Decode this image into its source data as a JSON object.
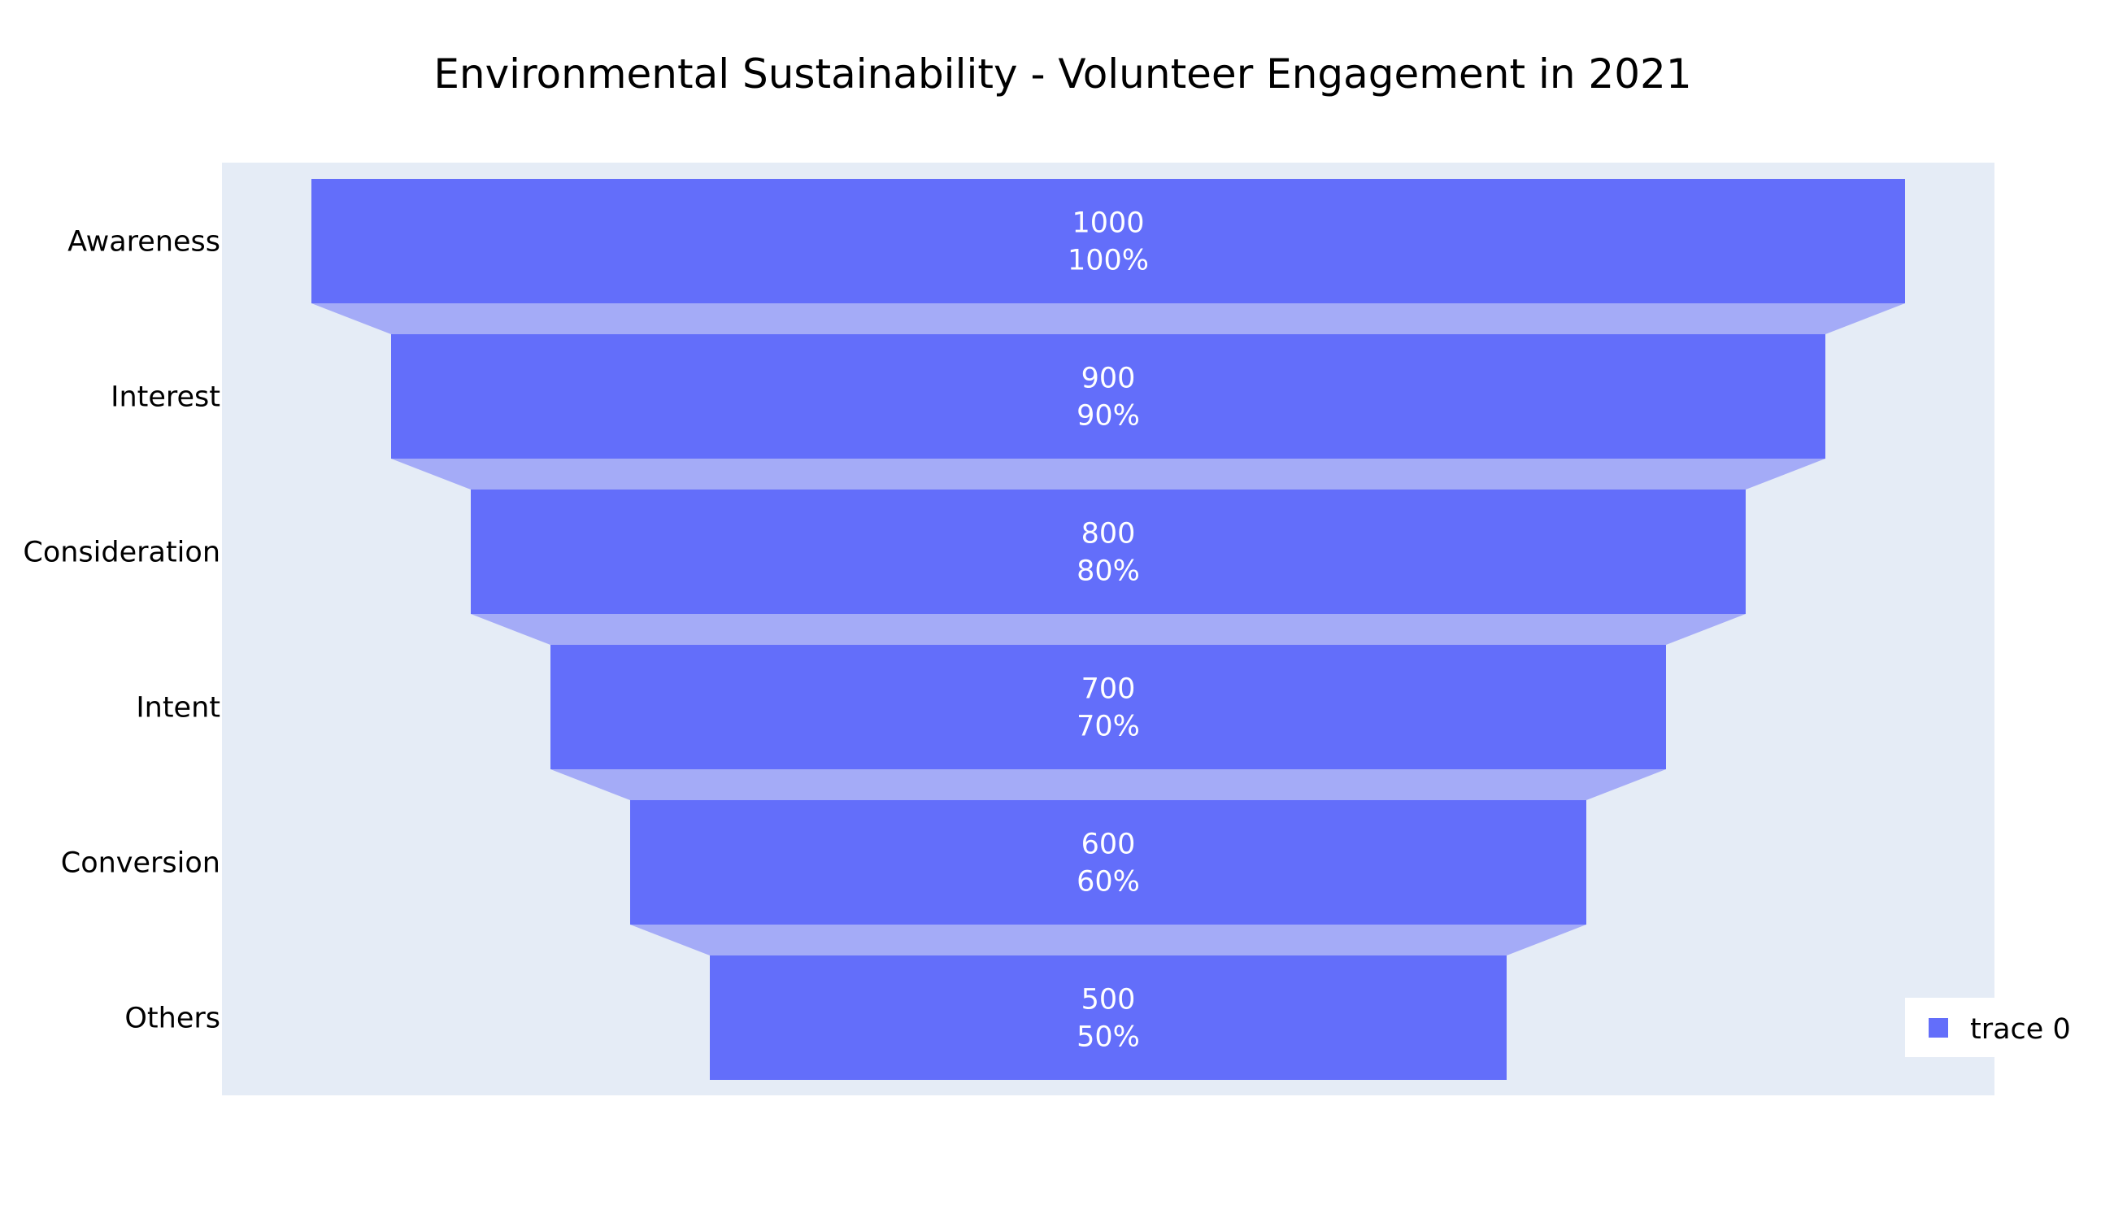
{
  "chart_data": {
    "type": "funnel",
    "title": "Environmental Sustainability - Volunteer Engagement in 2021",
    "categories": [
      "Awareness",
      "Interest",
      "Consideration",
      "Intent",
      "Conversion",
      "Others"
    ],
    "series": [
      {
        "name": "trace 0",
        "values": [
          1000,
          900,
          800,
          700,
          600,
          500
        ],
        "labels": [
          "1000",
          "900",
          "800",
          "700",
          "600",
          "500"
        ],
        "percent_labels": [
          "100%",
          "90%",
          "80%",
          "70%",
          "60%",
          "50%"
        ]
      }
    ],
    "legend": {
      "position": "bottom-right",
      "entries": [
        "trace 0"
      ]
    },
    "colors": {
      "bar": "#636efa",
      "connector": "#a4abf7",
      "plot_bg": "#e5ecf6",
      "paper_bg": "#ffffff"
    },
    "grid": false
  }
}
